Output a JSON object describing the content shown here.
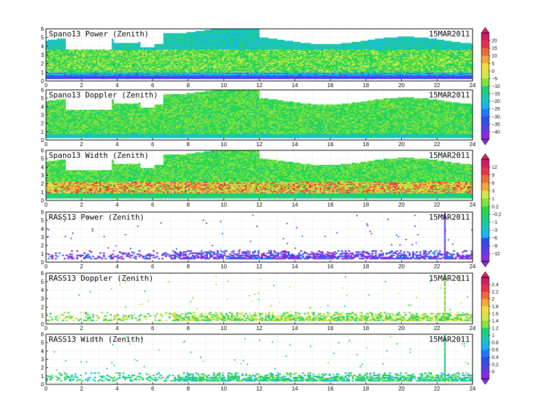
{
  "chart_data": {
    "type": "heatmap",
    "date": "15MAR2011",
    "x_ticks": [
      "0",
      "2",
      "4",
      "6",
      "8",
      "10",
      "12",
      "14",
      "16",
      "18",
      "20",
      "22",
      "24"
    ],
    "xlim": [
      0,
      24
    ],
    "y_ticks": [
      "0",
      "1",
      "2",
      "3",
      "4",
      "5",
      "6"
    ],
    "ylim": [
      0,
      6
    ],
    "grid": true,
    "panels": [
      {
        "title": "Spano13 Power (Zenith)",
        "kind": "spano_power",
        "colorbar": 0
      },
      {
        "title": "Spano13 Doppler (Zenith)",
        "kind": "spano_doppler",
        "colorbar": 0
      },
      {
        "title": "Spano13 Width (Zenith)",
        "kind": "spano_width",
        "colorbar": 1
      },
      {
        "title": "RASS13 Power (Zenith)",
        "kind": "rass_power",
        "colorbar": 1
      },
      {
        "title": "RASS13 Doppler (Zenith)",
        "kind": "rass_doppler",
        "colorbar": 2
      },
      {
        "title": "RASS13 Width (Zenith)",
        "kind": "rass_width",
        "colorbar": 2
      }
    ],
    "colorbars": [
      {
        "labels": [
          "20",
          "15",
          "10",
          "5",
          "0",
          "−5",
          "−10",
          "−15",
          "−20",
          "−25",
          "−30",
          "−35",
          "−40"
        ]
      },
      {
        "labels": [
          "12",
          "9",
          "6",
          "3",
          "1",
          "0.2",
          "−0.2",
          "−1",
          "−3",
          "−6",
          "−9",
          "−12"
        ]
      },
      {
        "labels": [
          "2.4",
          "2.2",
          "2",
          "1.8",
          "1.6",
          "1.4",
          "1.2",
          "1",
          "0.8",
          "0.6",
          "0.4",
          "0.2",
          "0"
        ]
      }
    ],
    "palette": [
      "#8a2be2",
      "#5a3ee8",
      "#2f4cf0",
      "#1f78ff",
      "#16b4f0",
      "#18c8b0",
      "#1ecf7a",
      "#28d84a",
      "#86e23c",
      "#cfe84a",
      "#f0df3a",
      "#f4a83a",
      "#ef6a3a",
      "#e8304a",
      "#d01a6a"
    ]
  }
}
